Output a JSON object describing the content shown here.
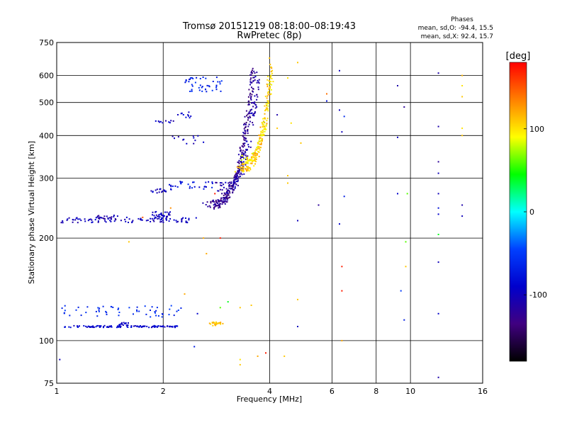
{
  "chart_data": {
    "type": "scatter",
    "title": "Tromsø 20151219 08:18:00–08:19:43",
    "subtitle": "RwPretec (8p)",
    "xlabel": "Frequency [MHz]",
    "ylabel": "Stationary phase Virtual Height [km]",
    "x_scale": "log",
    "y_scale": "log",
    "xlim": [
      1,
      16
    ],
    "ylim": [
      75,
      750
    ],
    "x_ticks": [
      1,
      2,
      4,
      6,
      8,
      10,
      16
    ],
    "y_ticks": [
      75,
      100,
      200,
      300,
      400,
      500,
      600,
      750
    ],
    "grid": true,
    "phases": {
      "title": "Phases",
      "o_line": "mean, sd,O: -94.4, 15.5",
      "x_line": "mean, sd,X:  92.4, 15.7"
    },
    "colorbar": {
      "label": "[deg]",
      "range": [
        -180,
        180
      ],
      "ticks": [
        -100,
        0,
        100
      ],
      "colors": [
        "#ff0000",
        "#ff8000",
        "#ffff00",
        "#00ff00",
        "#00ffff",
        "#0040ff",
        "#0000cc",
        "#400080",
        "#000000"
      ]
    },
    "series": [
      {
        "segments": [
          {
            "x0": 1.05,
            "x1": 2.2,
            "y": 110,
            "n": 120,
            "jitter": 0.006,
            "phase": -90
          },
          {
            "x0": 1.5,
            "x1": 1.6,
            "y": 112,
            "n": 15,
            "jitter": 0.01,
            "phase": -90
          },
          {
            "x0": 1.03,
            "x1": 2.25,
            "y": 122,
            "n": 55,
            "jitter": 0.04,
            "phase": -60
          },
          {
            "x0": 1.03,
            "x1": 2.5,
            "y": 226,
            "n": 90,
            "jitter": 0.018,
            "phase": -100
          },
          {
            "x0": 1.3,
            "x1": 1.5,
            "y": 230,
            "n": 18,
            "jitter": 0.015,
            "phase": -110
          },
          {
            "x0": 1.85,
            "x1": 2.1,
            "y": 232,
            "n": 40,
            "jitter": 0.03,
            "phase": -100
          },
          {
            "x0": 1.85,
            "x1": 2.05,
            "y": 275,
            "n": 18,
            "jitter": 0.015,
            "phase": -95
          },
          {
            "x0": 2.05,
            "x1": 2.8,
            "y": 285,
            "n": 30,
            "jitter": 0.03,
            "phase": -80
          },
          {
            "x0": 1.9,
            "x1": 2.2,
            "y": 440,
            "n": 10,
            "jitter": 0.01,
            "phase": -100
          },
          {
            "x0": 2.2,
            "x1": 2.4,
            "y": 460,
            "n": 10,
            "jitter": 0.02,
            "phase": -90
          },
          {
            "x0": 2.3,
            "x1": 2.95,
            "y": 565,
            "n": 45,
            "jitter": 0.05,
            "phase": -65
          },
          {
            "x0": 2.1,
            "x1": 2.6,
            "y": 390,
            "n": 12,
            "jitter": 0.03,
            "phase": -100
          },
          {
            "x0": 2.7,
            "x1": 2.95,
            "y": 112,
            "n": 25,
            "jitter": 0.012,
            "phase": 110
          }
        ],
        "curves": [
          {
            "x0": 2.6,
            "x1": 3.6,
            "y0": 250,
            "y1": 640,
            "n": 260,
            "jitter": 0.03,
            "phase": -125
          },
          {
            "x0": 2.8,
            "x1": 3.7,
            "y0": 280,
            "y1": 620,
            "n": 140,
            "jitter": 0.04,
            "phase": -110
          },
          {
            "x0": 3.2,
            "x1": 4.05,
            "y0": 320,
            "y1": 660,
            "n": 160,
            "jitter": 0.03,
            "phase": 110
          },
          {
            "x0": 3.3,
            "x1": 4.05,
            "y0": 340,
            "y1": 600,
            "n": 80,
            "jitter": 0.03,
            "phase": 95
          }
        ],
        "points": [
          [
            6.3,
            620,
            -100
          ],
          [
            6.3,
            475,
            -100
          ],
          [
            6.4,
            410,
            -100
          ],
          [
            6.3,
            220,
            -90
          ],
          [
            6.5,
            265,
            -70
          ],
          [
            6.5,
            455,
            -60
          ],
          [
            6.4,
            165,
            170
          ],
          [
            6.4,
            140,
            170
          ],
          [
            6.4,
            100,
            120
          ],
          [
            9.2,
            560,
            -110
          ],
          [
            9.2,
            395,
            -100
          ],
          [
            9.2,
            270,
            -90
          ],
          [
            9.4,
            140,
            -50
          ],
          [
            9.6,
            115,
            -70
          ],
          [
            9.6,
            485,
            -120
          ],
          [
            9.7,
            195,
            60
          ],
          [
            9.7,
            165,
            110
          ],
          [
            9.8,
            270,
            60
          ],
          [
            12.0,
            610,
            -110
          ],
          [
            12.0,
            425,
            -110
          ],
          [
            12.0,
            335,
            -120
          ],
          [
            12.0,
            310,
            -100
          ],
          [
            12.0,
            270,
            -100
          ],
          [
            12.0,
            245,
            -80
          ],
          [
            12.0,
            235,
            -90
          ],
          [
            12.0,
            205,
            40
          ],
          [
            12.0,
            170,
            -100
          ],
          [
            12.0,
            120,
            -90
          ],
          [
            12.0,
            78,
            -110
          ],
          [
            14.0,
            400,
            110
          ],
          [
            14.0,
            420,
            100
          ],
          [
            14.0,
            520,
            110
          ],
          [
            14.0,
            560,
            100
          ],
          [
            14.0,
            600,
            115
          ],
          [
            14.0,
            250,
            -110
          ],
          [
            14.0,
            232,
            -100
          ],
          [
            4.8,
            225,
            -100
          ],
          [
            4.8,
            132,
            110
          ],
          [
            4.8,
            110,
            -100
          ],
          [
            5.5,
            250,
            -120
          ],
          [
            5.8,
            530,
            140
          ],
          [
            5.8,
            505,
            -80
          ],
          [
            4.5,
            305,
            110
          ],
          [
            4.5,
            290,
            110
          ],
          [
            4.4,
            90,
            110
          ],
          [
            3.9,
            92,
            170
          ],
          [
            4.6,
            435,
            100
          ],
          [
            4.8,
            655,
            110
          ],
          [
            4.5,
            590,
            100
          ],
          [
            4.2,
            420,
            110
          ],
          [
            4.9,
            380,
            110
          ],
          [
            2.9,
            200,
            170
          ],
          [
            2.6,
            200,
            120
          ],
          [
            1.6,
            195,
            110
          ],
          [
            2.45,
            96,
            -70
          ],
          [
            3.3,
            85,
            110
          ],
          [
            3.3,
            88,
            100
          ],
          [
            3.7,
            90,
            120
          ],
          [
            2.3,
            137,
            120
          ],
          [
            2.5,
            120,
            -90
          ],
          [
            2.9,
            125,
            60
          ],
          [
            3.05,
            130,
            40
          ],
          [
            3.3,
            125,
            110
          ],
          [
            1.75,
            230,
            150
          ],
          [
            2.1,
            245,
            130
          ],
          [
            2.65,
            180,
            120
          ],
          [
            2.8,
            270,
            170
          ],
          [
            4.2,
            460,
            -110
          ],
          [
            3.55,
            127,
            110
          ],
          [
            1.02,
            88,
            -100
          ]
        ]
      }
    ]
  }
}
